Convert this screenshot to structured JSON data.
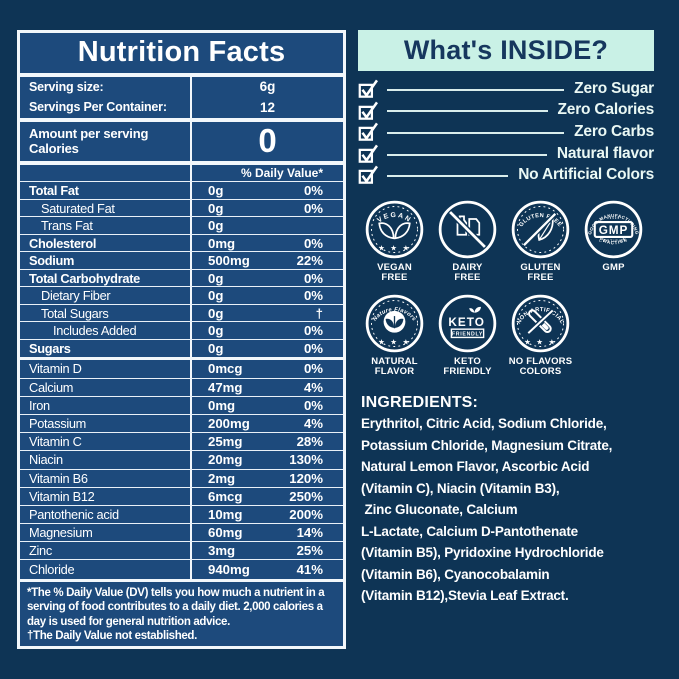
{
  "colors": {
    "background_navy": "#0e3455",
    "panel_blue": "#1d4a7c",
    "line_white": "#f2f7fb",
    "banner_mint": "#c9f1e6",
    "banner_text_navy": "#16375e"
  },
  "nutrition_panel": {
    "title": "Nutrition Facts",
    "serving_rows": [
      {
        "label": "Serving size:",
        "value": "6g"
      },
      {
        "label": "Servings Per Container:",
        "value": "12"
      }
    ],
    "calories": {
      "line1": "Amount per serving",
      "line2": "Calories",
      "value": "0"
    },
    "dv_header": "% Daily Value*",
    "main_rows": [
      {
        "label": "Total Fat",
        "amount": "0g",
        "dv": "0%",
        "bold": true,
        "indent": 0
      },
      {
        "label": "Saturated Fat",
        "amount": "0g",
        "dv": "0%",
        "indent": 1
      },
      {
        "label": "Trans Fat",
        "amount": "0g",
        "dv": "",
        "indent": 1
      },
      {
        "label": "Cholesterol",
        "amount": "0mg",
        "dv": "0%",
        "bold": true,
        "indent": 0
      },
      {
        "label": "Sodium",
        "amount": "500mg",
        "dv": "22%",
        "bold": true,
        "indent": 0
      },
      {
        "label": "Total Carbohydrate",
        "amount": "0g",
        "dv": "0%",
        "bold": true,
        "indent": 0
      },
      {
        "label": "Dietary Fiber",
        "amount": "0g",
        "dv": "0%",
        "indent": 1
      },
      {
        "label": "Total Sugars",
        "amount": "0g",
        "dv": "†",
        "indent": 1
      },
      {
        "label": "Includes Added",
        "amount": "0g",
        "dv": "0%",
        "indent": 2
      },
      {
        "label": "Sugars",
        "amount": "0g",
        "dv": "0%",
        "bold": true,
        "indent": 0
      }
    ],
    "vitamin_rows": [
      {
        "label": "Vitamin D",
        "amount": "0mcg",
        "dv": "0%"
      },
      {
        "label": "Calcium",
        "amount": "47mg",
        "dv": "4%"
      },
      {
        "label": "Iron",
        "amount": "0mg",
        "dv": "0%"
      },
      {
        "label": "Potassium",
        "amount": "200mg",
        "dv": "4%"
      },
      {
        "label": "Vitamin C",
        "amount": "25mg",
        "dv": "28%"
      },
      {
        "label": "Niacin",
        "amount": "20mg",
        "dv": "130%"
      },
      {
        "label": "Vitamin B6",
        "amount": "2mg",
        "dv": "120%"
      },
      {
        "label": "Vitamin B12",
        "amount": "6mcg",
        "dv": "250%"
      },
      {
        "label": "Pantothenic acid",
        "amount": "10mg",
        "dv": "200%"
      },
      {
        "label": "Magnesium",
        "amount": "60mg",
        "dv": "14%"
      },
      {
        "label": "Zinc",
        "amount": "3mg",
        "dv": "25%"
      },
      {
        "label": "Chloride",
        "amount": "940mg",
        "dv": "41%"
      }
    ],
    "footnote": "*The % Daily Value (DV) tells you how much a nutrient in a serving of food contributes to a daily diet. 2,000 calories a day is used for general nutrition advice.",
    "footnote2": "†The Daily Value not established."
  },
  "inside_panel": {
    "title": "What's INSIDE?",
    "checklist": [
      "Zero Sugar",
      "Zero Calories",
      "Zero Carbs",
      "Natural flavor",
      "No Artificial Colors"
    ],
    "badges_row1": [
      {
        "type": "vegan",
        "arc_top": "VEGAN",
        "icon": "leaves",
        "stars": true,
        "dashed": true,
        "label_lines": [
          "VEGAN",
          "FREE"
        ]
      },
      {
        "type": "dairy",
        "icon": "milk-bottles",
        "slash": true,
        "label_lines": [
          "DAIRY",
          "FREE"
        ]
      },
      {
        "type": "gluten",
        "arc_top": "GLUTEN FREE",
        "icon": "leaf",
        "slash": true,
        "dashed": true,
        "label_lines": [
          "GLUTEN",
          "FREE"
        ]
      },
      {
        "type": "gmp",
        "arc_top": "GOOD-MANUFACTURING",
        "center": "GMP",
        "sub": "CERTIFIED",
        "arc_bottom": "PRACTICE",
        "label_lines": [
          "GMP"
        ]
      }
    ],
    "badges_row2": [
      {
        "type": "nature",
        "arc_top": "Nature Flavors",
        "icon": "leaf-circle",
        "stars": true,
        "dashed": true,
        "label_lines": [
          "NATURAL",
          "FLAVOR"
        ]
      },
      {
        "type": "keto",
        "center": "KETO",
        "sub": "FRIENDLY",
        "icon": "sprout",
        "label_lines": [
          "KETO",
          "FRIENDLY"
        ]
      },
      {
        "type": "nonartificial",
        "arc_top": "NON-ARTIFICIAL",
        "icon": "test-tube",
        "slash": true,
        "stars": true,
        "dashed": true,
        "label_lines": [
          "NO FLAVORS",
          "COLORS"
        ]
      }
    ],
    "ingredients": {
      "heading": "INGREDIENTS:",
      "lines": [
        "Erythritol, Citric Acid, Sodium Chloride,",
        "Potassium Chloride, Magnesium Citrate,",
        "Natural Lemon Flavor, Ascorbic Acid",
        "(Vitamin C), Niacin (Vitamin B3),",
        " Zinc Gluconate, Calcium",
        "L-Lactate, Calcium D-Pantothenate",
        "(Vitamin B5), Pyridoxine Hydrochloride",
        "(Vitamin B6), Cyanocobalamin",
        "(Vitamin B12),Stevia Leaf Extract."
      ]
    }
  }
}
